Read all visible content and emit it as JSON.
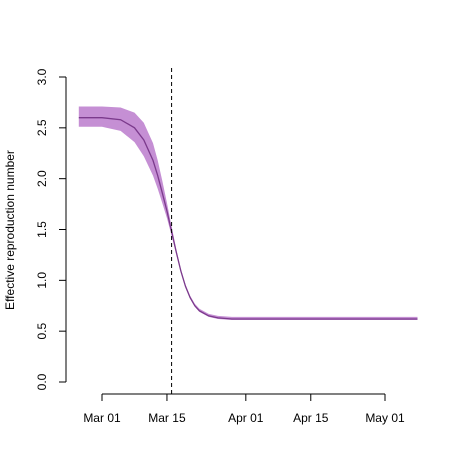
{
  "chart_data": {
    "type": "line",
    "title": "",
    "xlabel": "",
    "ylabel": "Effective reproduction number",
    "x_axis": {
      "type": "date",
      "range": [
        "2020-02-25",
        "2020-05-08"
      ],
      "ticks": [
        {
          "date": "2020-03-01",
          "label": "Mar 01"
        },
        {
          "date": "2020-03-15",
          "label": "Mar 15"
        },
        {
          "date": "2020-04-01",
          "label": "Apr 01"
        },
        {
          "date": "2020-04-15",
          "label": "Apr 15"
        },
        {
          "date": "2020-05-01",
          "label": "May 01"
        }
      ]
    },
    "y_axis": {
      "range": [
        0,
        3
      ],
      "ticks": [
        {
          "value": 0,
          "label": "0.0"
        },
        {
          "value": 0.5,
          "label": "0.5"
        },
        {
          "value": 1,
          "label": "1.0"
        },
        {
          "value": 1.5,
          "label": "1.5"
        },
        {
          "value": 2,
          "label": "2.0"
        },
        {
          "value": 2.5,
          "label": "2.5"
        },
        {
          "value": 3,
          "label": "3.0"
        }
      ]
    },
    "grid": false,
    "series": [
      {
        "style": "line with shaded credible band",
        "x": [
          "2020-02-25",
          "2020-03-01",
          "2020-03-05",
          "2020-03-08",
          "2020-03-10",
          "2020-03-12",
          "2020-03-13",
          "2020-03-14",
          "2020-03-15",
          "2020-03-16",
          "2020-03-17",
          "2020-03-18",
          "2020-03-19",
          "2020-03-20",
          "2020-03-21",
          "2020-03-22",
          "2020-03-24",
          "2020-03-26",
          "2020-03-29",
          "2020-04-01",
          "2020-04-15",
          "2020-05-01",
          "2020-05-08"
        ],
        "y": [
          2.6,
          2.6,
          2.58,
          2.5,
          2.38,
          2.18,
          2.03,
          1.86,
          1.68,
          1.48,
          1.28,
          1.09,
          0.94,
          0.83,
          0.75,
          0.7,
          0.65,
          0.63,
          0.62,
          0.62,
          0.62,
          0.62,
          0.62
        ],
        "lower": [
          2.51,
          2.51,
          2.47,
          2.36,
          2.22,
          2.03,
          1.9,
          1.76,
          1.61,
          1.44,
          1.26,
          1.08,
          0.93,
          0.82,
          0.74,
          0.69,
          0.64,
          0.62,
          0.61,
          0.61,
          0.61,
          0.61,
          0.61
        ],
        "upper": [
          2.71,
          2.71,
          2.7,
          2.65,
          2.55,
          2.35,
          2.18,
          1.98,
          1.76,
          1.53,
          1.31,
          1.11,
          0.96,
          0.85,
          0.77,
          0.72,
          0.67,
          0.65,
          0.64,
          0.64,
          0.64,
          0.64,
          0.64
        ]
      }
    ],
    "annotations": [
      {
        "type": "vertical-dashed-line",
        "date": "2020-03-16"
      }
    ],
    "colors": {
      "line": "#7b3a8c",
      "band": "#c58fd4",
      "vline": "#000000"
    }
  }
}
